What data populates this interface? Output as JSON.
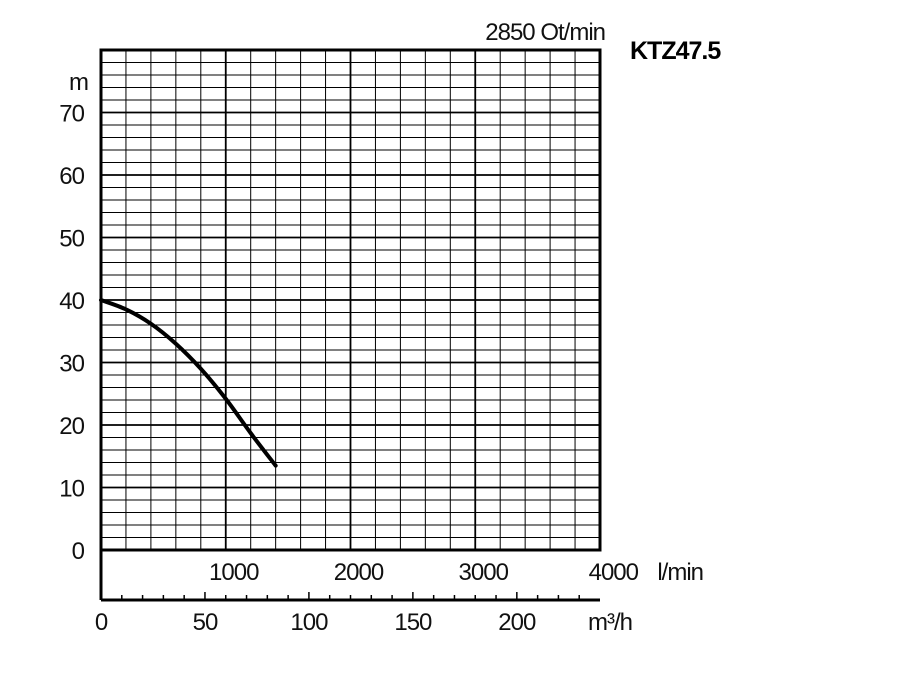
{
  "chart_data": {
    "type": "line",
    "title": "2850 Ot/min",
    "model": "KTZ47.5",
    "ylabel": "m",
    "xlabel_primary_unit": "l/min",
    "xlabel_secondary_unit": "m³/h",
    "ylim": [
      0,
      80
    ],
    "xlim": [
      0,
      4000
    ],
    "secondary_xlim": [
      0,
      240
    ],
    "y_ticks": [
      0,
      10,
      20,
      30,
      40,
      50,
      60,
      70
    ],
    "x_ticks": [
      1000,
      2000,
      3000,
      4000
    ],
    "secondary_x_ticks": [
      0,
      50,
      100,
      150,
      200
    ],
    "grid": true,
    "series": [
      {
        "x": [
          0,
          200,
          400,
          600,
          800,
          1000,
          1200,
          1400
        ],
        "y": [
          40,
          38.5,
          36.2,
          33,
          29,
          24.2,
          18.7,
          13.5
        ]
      }
    ]
  }
}
